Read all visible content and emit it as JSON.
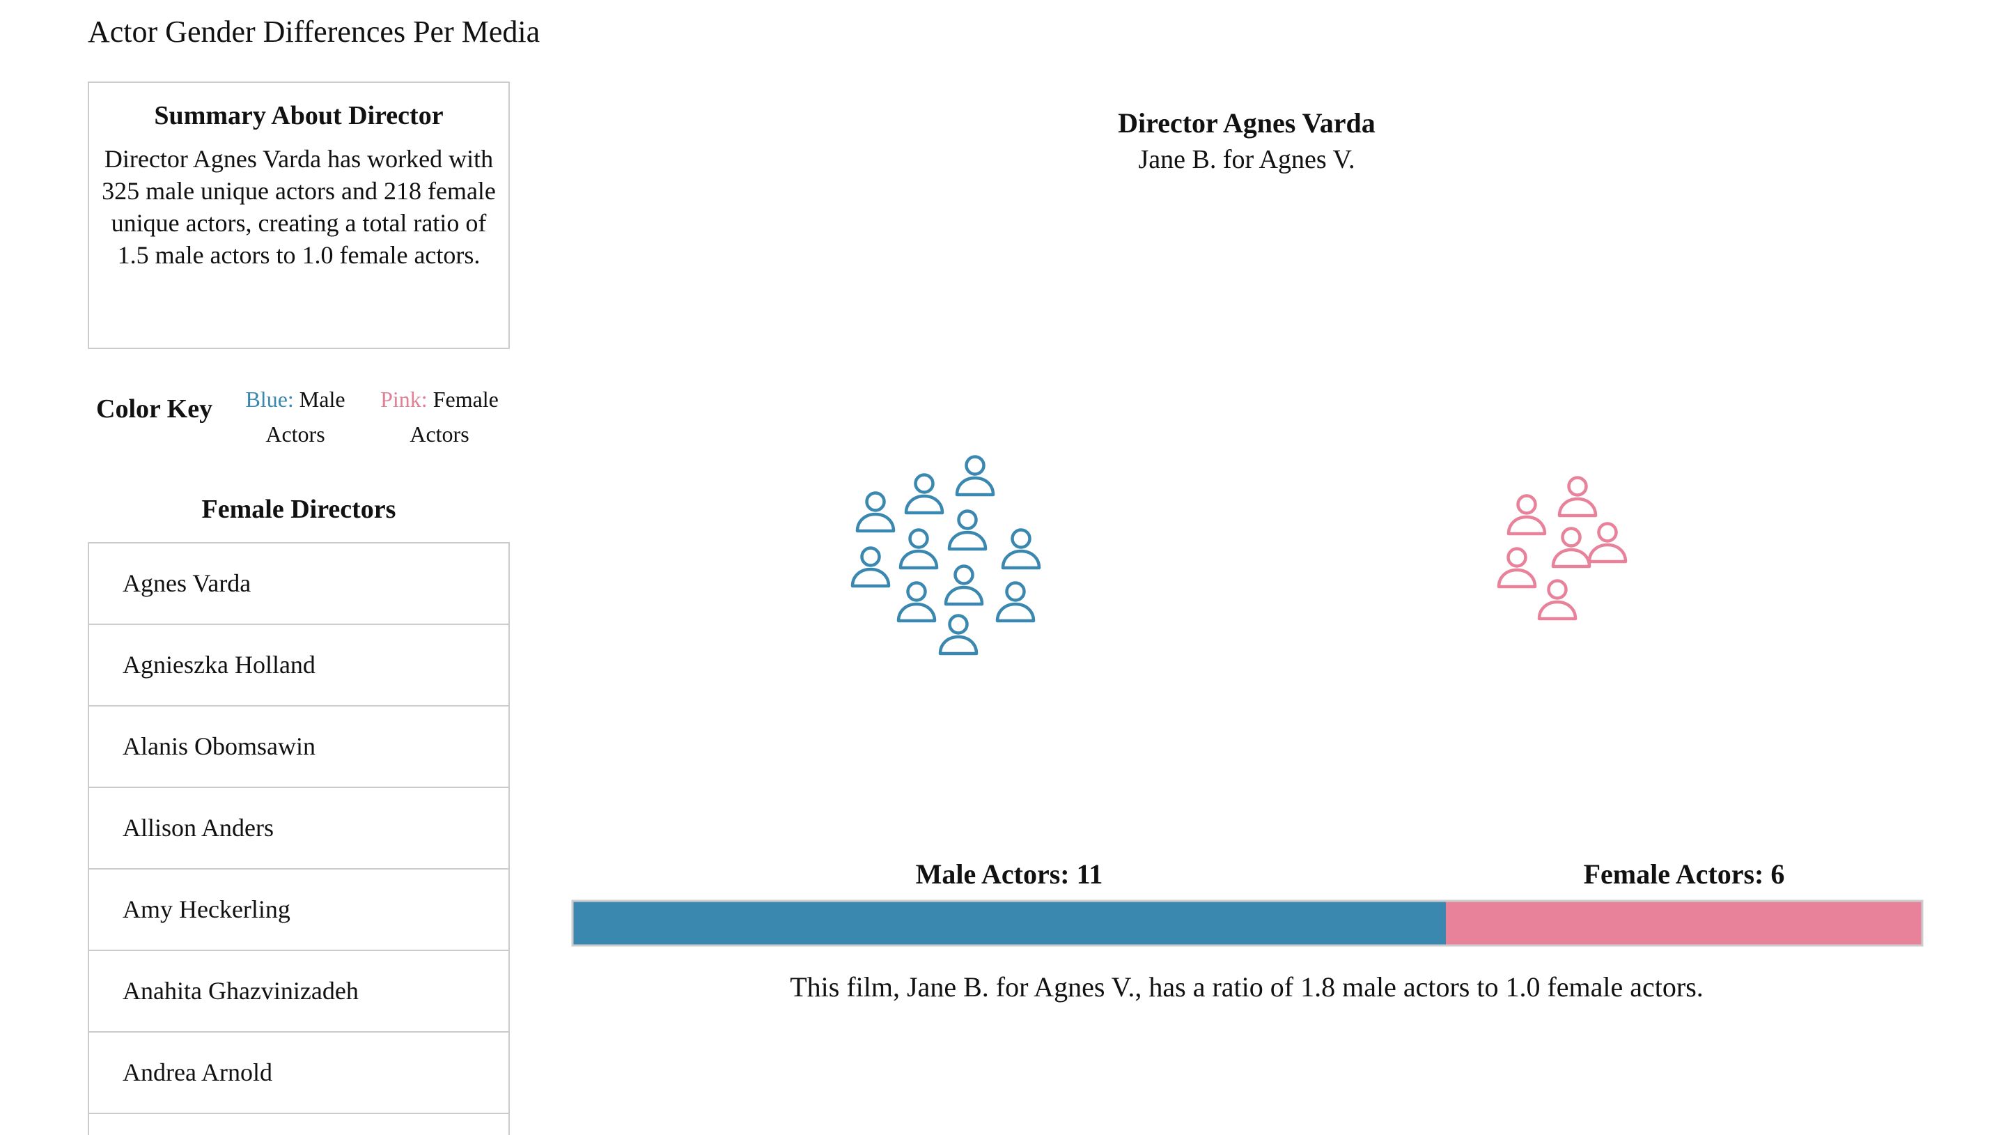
{
  "page_title": "Actor Gender Differences Per Media",
  "summary": {
    "title": "Summary About Director",
    "text": "Director Agnes Varda has worked with 325 male unique actors and 218 female unique actors, creating a total ratio of 1.5 male actors to 1.0 female actors."
  },
  "color_key": {
    "title": "Color Key",
    "male_color_label": "Blue:",
    "male_text": "Male Actors",
    "female_color_label": "Pink:",
    "female_text": "Female Actors"
  },
  "directors_list": {
    "title": "Female Directors",
    "items": [
      "Agnes Varda",
      "Agnieszka Holland",
      "Alanis Obomsawin",
      "Allison Anders",
      "Amy Heckerling",
      "Anahita Ghazvinizadeh",
      "Andrea Arnold"
    ]
  },
  "visualization": {
    "director_heading": "Director Agnes Varda",
    "film_title": "Jane B. for Agnes V.",
    "male_count": 11,
    "female_count": 6,
    "male_label": "Male Actors: 11",
    "female_label": "Female Actors: 6",
    "ratio_text": "This film, Jane B. for Agnes V., has a ratio of 1.8 male actors to 1.0 female actors.",
    "icon": "person-outline-icon"
  },
  "colors": {
    "male": "#3a87b0",
    "female": "#e8829a",
    "border": "#cccccc"
  }
}
